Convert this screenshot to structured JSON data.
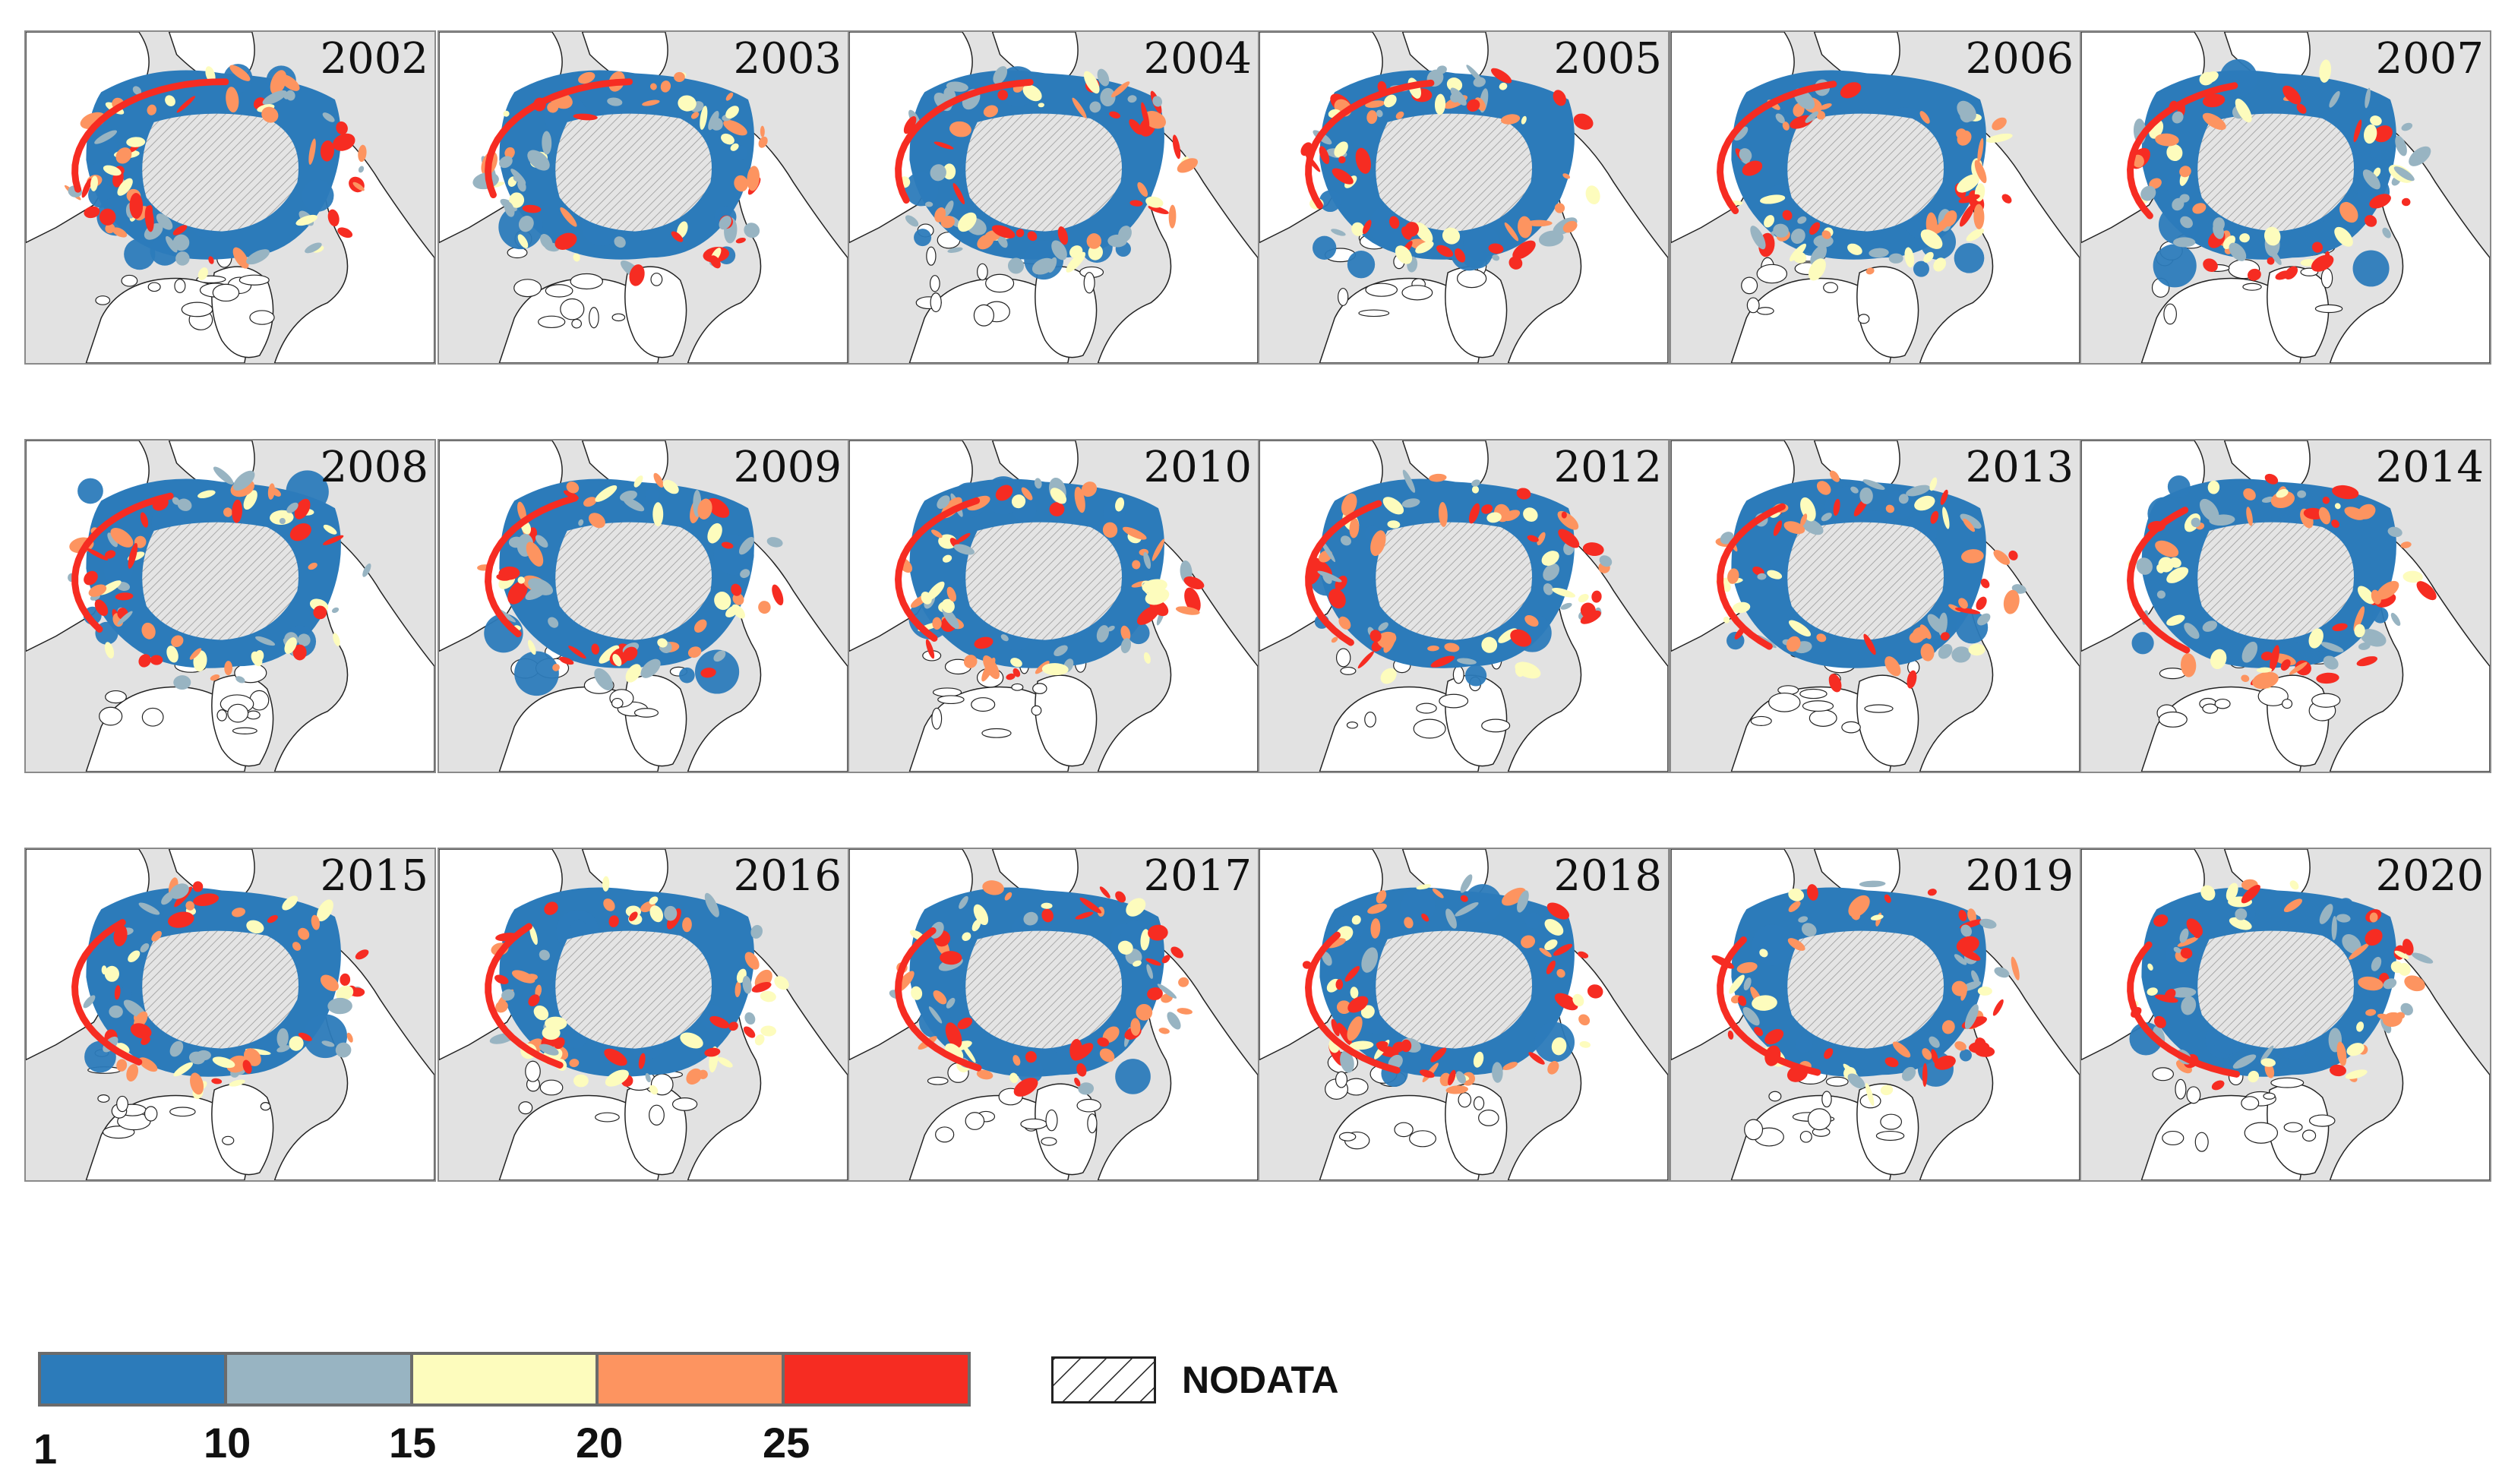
{
  "panels": [
    {
      "year": "2002"
    },
    {
      "year": "2003"
    },
    {
      "year": "2004"
    },
    {
      "year": "2005"
    },
    {
      "year": "2006"
    },
    {
      "year": "2007"
    },
    {
      "year": "2008"
    },
    {
      "year": "2009"
    },
    {
      "year": "2010"
    },
    {
      "year": "2012"
    },
    {
      "year": "2013"
    },
    {
      "year": "2014"
    },
    {
      "year": "2015"
    },
    {
      "year": "2016"
    },
    {
      "year": "2017"
    },
    {
      "year": "2018"
    },
    {
      "year": "2019"
    },
    {
      "year": "2020"
    }
  ],
  "legend": {
    "colors": [
      "#2c7bba",
      "#98b4c2",
      "#fdfcbd",
      "#fd9460",
      "#f62c22"
    ],
    "ticks": [
      "1",
      "10",
      "15",
      "20",
      "25"
    ],
    "nodata_label": "NODATA"
  },
  "map_colors": {
    "land": "#ffffff",
    "ocean": "#e2e2e2",
    "nodata_fill": "#dcdcdc"
  }
}
